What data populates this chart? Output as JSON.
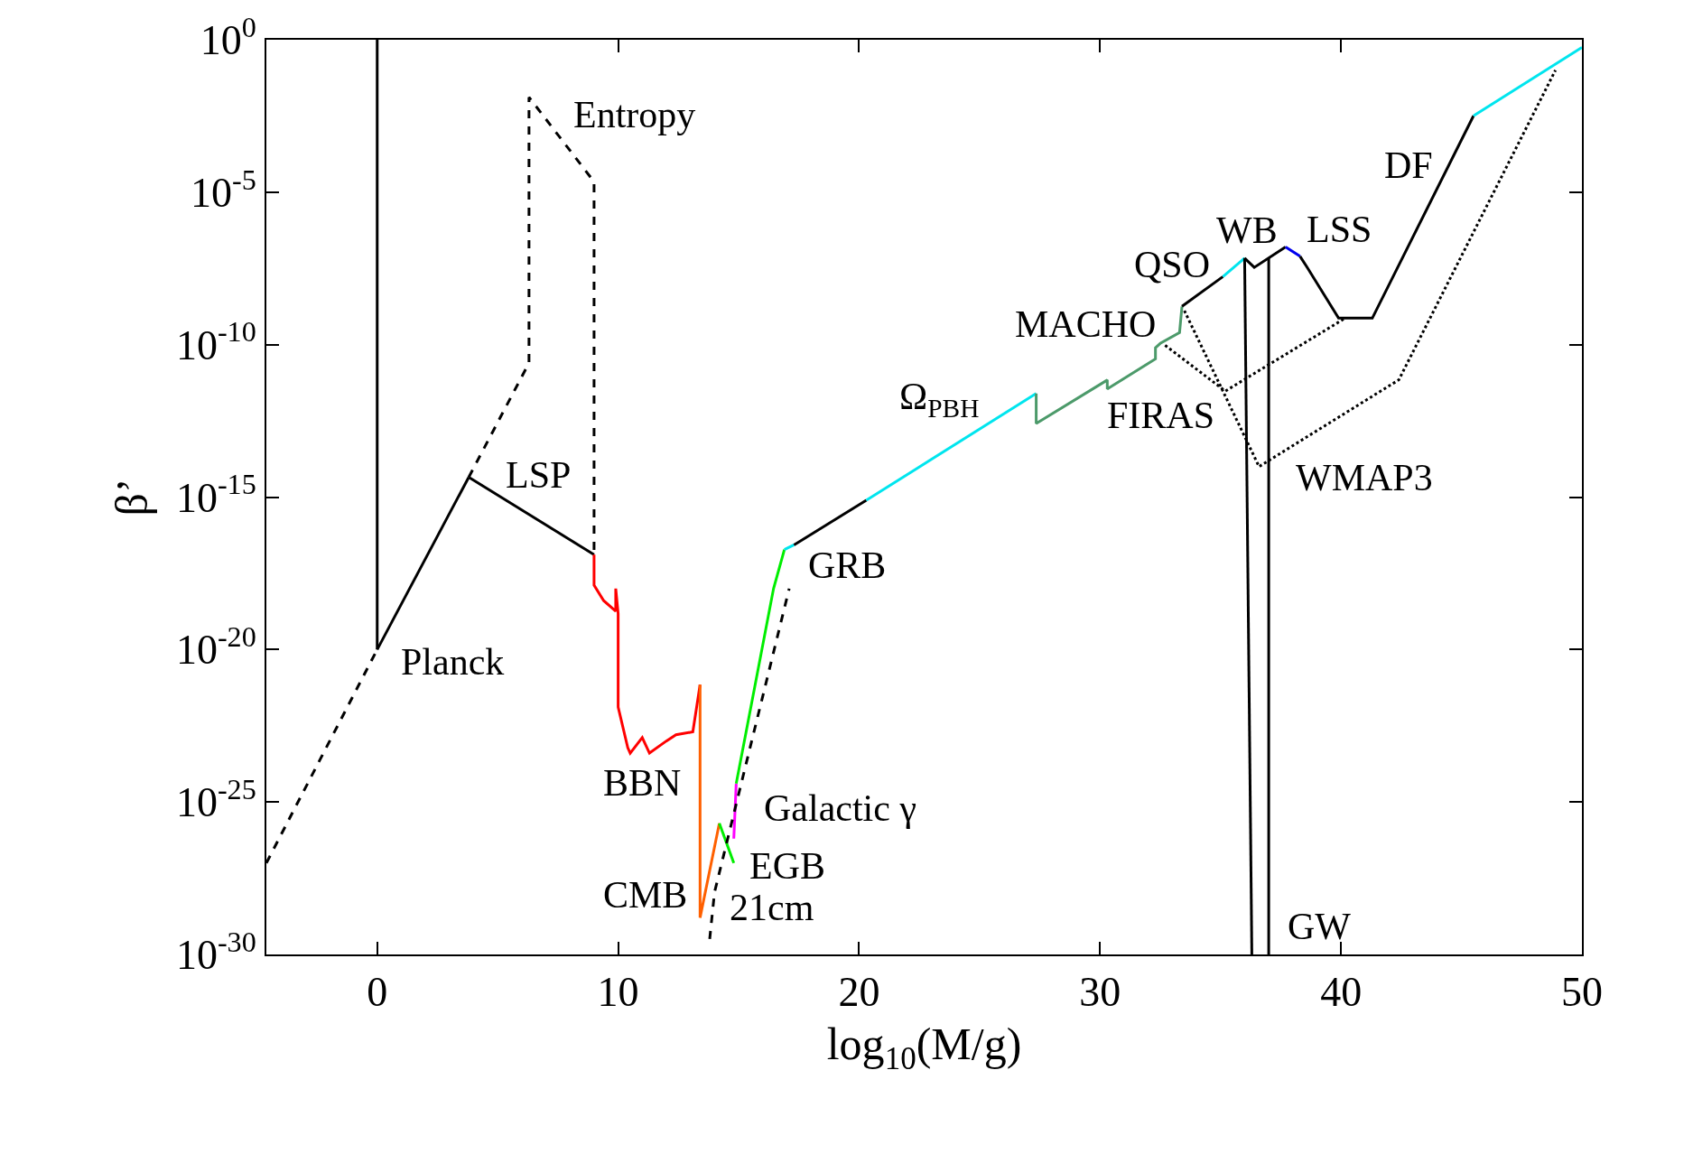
{
  "chart_data": {
    "type": "line",
    "xlabel": "log$_{10}$(M/g)",
    "ylabel": "β’",
    "log": "y",
    "marker": "none",
    "xlim": [
      -4.6,
      50
    ],
    "xticks": [
      0,
      10,
      20,
      30,
      40,
      50
    ],
    "ylim": [
      1e-30,
      1
    ],
    "yticks": [
      {
        "value": 1,
        "label": "10$^{0}$"
      },
      {
        "value": 1e-05,
        "label": "10$^{-5}$"
      },
      {
        "value": 1e-10,
        "label": "10$^{-10}$"
      },
      {
        "value": 1e-15,
        "label": "10$^{-15}$"
      },
      {
        "value": 1e-20,
        "label": "10$^{-20}$"
      },
      {
        "value": 1e-25,
        "label": "10$^{-25}$"
      },
      {
        "value": 1e-30,
        "label": "10$^{-30}$"
      }
    ],
    "series": [
      {
        "color": "#000000",
        "line_style": "solid",
        "x": [
          0,
          0
        ],
        "values": [
          1,
          1e-20
        ]
      },
      {
        "color": "#000000",
        "line_style": "dashed",
        "x": [
          -4.6,
          0
        ],
        "values": [
          1e-27,
          1e-20
        ]
      },
      {
        "color": "#000000",
        "line_style": "solid",
        "x": [
          0,
          3.8
        ],
        "values": [
          1e-20,
          4.5e-15
        ]
      },
      {
        "color": "#000000",
        "line_style": "dashed",
        "x": [
          3.8,
          6.3,
          6.3,
          9.0,
          9.0
        ],
        "values": [
          4.5e-15,
          2.5e-11,
          0.013,
          2.2e-05,
          1.3e-17
        ]
      },
      {
        "color": "#000000",
        "line_style": "solid",
        "x": [
          3.8,
          9.0
        ],
        "values": [
          4.5e-15,
          1.3e-17
        ]
      },
      {
        "color": "#ff0000",
        "line_style": "solid",
        "x": [
          9.0,
          9.0,
          9.4,
          9.9,
          9.9,
          10.0,
          10.0,
          10.4,
          10.5,
          11.0,
          11.3,
          12.0,
          12.4,
          13.1,
          13.4
        ],
        "values": [
          1.3e-17,
          1.3e-18,
          4e-19,
          1.8e-19,
          1e-18,
          1.5e-19,
          1.3e-22,
          6e-24,
          4e-24,
          1.3e-23,
          4e-24,
          1e-23,
          1.6e-23,
          2e-23,
          7e-22
        ]
      },
      {
        "color": "#ff6000",
        "line_style": "solid",
        "x": [
          13.4,
          13.4,
          14.2
        ],
        "values": [
          7e-22,
          1.6e-29,
          2e-26
        ]
      },
      {
        "color": "#00ee00",
        "line_style": "solid",
        "x": [
          14.2,
          14.8
        ],
        "values": [
          2e-26,
          1e-27
        ]
      },
      {
        "color": "#ff00ff",
        "line_style": "solid",
        "x": [
          14.8,
          14.9
        ],
        "values": [
          6.3e-27,
          4e-25
        ]
      },
      {
        "color": "#00ee00",
        "line_style": "solid",
        "x": [
          14.9,
          16.45,
          16.9
        ],
        "values": [
          4e-25,
          1e-18,
          1.9e-17
        ]
      },
      {
        "color": "#00e5ee",
        "line_style": "solid",
        "x": [
          16.9,
          17.3
        ],
        "values": [
          1.9e-17,
          2.7e-17
        ]
      },
      {
        "color": "#000000",
        "line_style": "solid",
        "x": [
          17.3,
          20.3
        ],
        "values": [
          2.7e-17,
          7.9e-16
        ]
      },
      {
        "color": "#00e5ee",
        "line_style": "solid",
        "x": [
          20.3,
          27.35
        ],
        "values": [
          7.9e-16,
          2.5e-12
        ]
      },
      {
        "color": "#4c9a6a",
        "line_style": "solid",
        "x": [
          27.35,
          27.35,
          30.3,
          30.3,
          32.3,
          32.3,
          32.5,
          33.3,
          33.4
        ],
        "values": [
          2.5e-12,
          2.6e-13,
          6.9e-12,
          3.5e-12,
          3.4e-11,
          7.9e-11,
          1.1e-10,
          2.5e-10,
          1.8e-09
        ]
      },
      {
        "color": "#000000",
        "line_style": "solid",
        "x": [
          33.4,
          35.1
        ],
        "values": [
          1.8e-09,
          1.7e-08
        ]
      },
      {
        "color": "#00e5ee",
        "line_style": "solid",
        "x": [
          35.1,
          36.0
        ],
        "values": [
          1.7e-08,
          6.9e-08
        ]
      },
      {
        "color": "#000000",
        "line_style": "solid",
        "x": [
          36.0,
          36.4,
          37.7
        ],
        "values": [
          6.9e-08,
          3.4e-08,
          1.6e-07
        ]
      },
      {
        "color": "#0000ee",
        "line_style": "solid",
        "x": [
          37.7,
          38.3
        ],
        "values": [
          1.6e-07,
          7.9e-08
        ]
      },
      {
        "color": "#000000",
        "line_style": "solid",
        "x": [
          38.3,
          38.6,
          39.9,
          41.3,
          45.5
        ],
        "values": [
          7.9e-08,
          3.4e-08,
          7.4e-10,
          7.4e-10,
          0.0032
        ]
      },
      {
        "color": "#00e5ee",
        "line_style": "solid",
        "x": [
          45.5,
          50.0
        ],
        "values": [
          0.0032,
          0.56
        ]
      },
      {
        "color": "#000000",
        "line_style": "solid",
        "x": [
          36.0,
          36.3
        ],
        "values": [
          6.9e-08,
          1e-30
        ]
      },
      {
        "color": "#000000",
        "line_style": "solid",
        "x": [
          37.0,
          37.0
        ],
        "values": [
          1e-30,
          6.8e-08
        ]
      },
      {
        "color": "#000000",
        "line_style": "dotted",
        "x": [
          32.7,
          35.2,
          40.2
        ],
        "values": [
          9.5e-11,
          3e-12,
          7.6e-10
        ]
      },
      {
        "color": "#000000",
        "line_style": "dotted",
        "x": [
          33.5,
          36.6,
          42.4,
          48.9
        ],
        "values": [
          1.3e-09,
          1e-14,
          7e-12,
          0.1
        ]
      },
      {
        "color": "#000000",
        "line_style": "dashed",
        "x": [
          13.8,
          14.0,
          17.1
        ],
        "values": [
          3.2e-30,
          1.1e-28,
          1e-18
        ]
      }
    ],
    "annotations": [
      {
        "text": "Entropy",
        "x": 6.3,
        "y": 0.013
      },
      {
        "text": "LSP",
        "x": 3.8,
        "y": 4.5e-15
      },
      {
        "text": "Planck",
        "x": 0,
        "y": 1e-20
      },
      {
        "text": "BBN",
        "x": 10.5,
        "y": 4e-24
      },
      {
        "text": "CMB",
        "x": 13.4,
        "y": 1.6e-29
      },
      {
        "text": "21cm",
        "x": 14.0,
        "y": 1.1e-28
      },
      {
        "text": "EGB",
        "x": 14.8,
        "y": 1e-27
      },
      {
        "text": "Galactic γ",
        "x": 14.9,
        "y": 4e-25
      },
      {
        "text": "GRB",
        "x": 16.9,
        "y": 1.9e-17
      },
      {
        "text": "Ω$_{PBH}$",
        "x": 27.35,
        "y": 2.5e-12
      },
      {
        "text": "FIRAS",
        "x": 35.2,
        "y": 3e-12
      },
      {
        "text": "MACHO",
        "x": 32.7,
        "y": 9.5e-11
      },
      {
        "text": "QSO",
        "x": 35.1,
        "y": 1.7e-08
      },
      {
        "text": "WB",
        "x": 36.0,
        "y": 6.9e-08
      },
      {
        "text": "LSS",
        "x": 37.7,
        "y": 1.6e-07
      },
      {
        "text": "DF",
        "x": 45.5,
        "y": 0.0032
      },
      {
        "text": "WMAP3",
        "x": 36.6,
        "y": 1e-14
      },
      {
        "text": "GW",
        "x": 37.0,
        "y": 1e-30
      }
    ]
  }
}
